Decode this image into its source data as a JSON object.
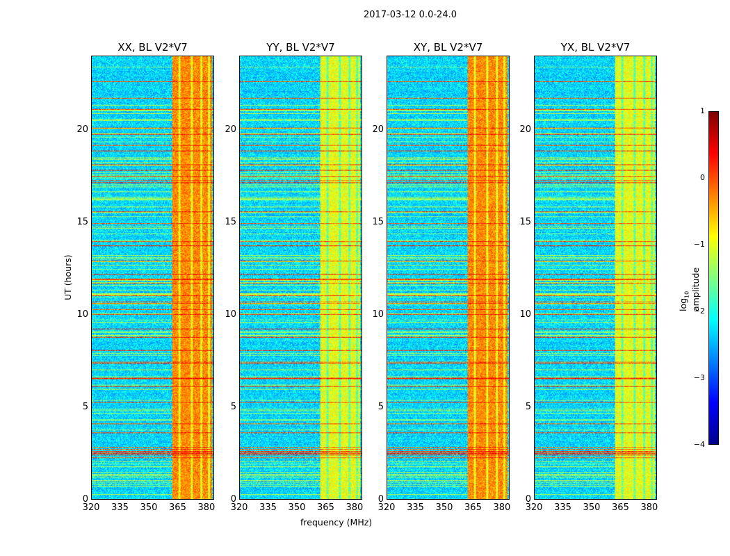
{
  "figure": {
    "suptitle": "2017-03-12 0.0-24.0"
  },
  "chart_data": {
    "type": "heatmap",
    "colormap": "jet",
    "panels": [
      {
        "title": "XX, BL V2*V7",
        "band_level": "high"
      },
      {
        "title": "YY, BL V2*V7",
        "band_level": "medium"
      },
      {
        "title": "XY, BL V2*V7",
        "band_level": "high"
      },
      {
        "title": "YX, BL V2*V7",
        "band_level": "medium"
      }
    ],
    "xlabel": "frequency (MHz)",
    "ylabel": "UT (hours)",
    "xlim": [
      320,
      384
    ],
    "ylim": [
      0,
      24
    ],
    "xticks": [
      "320",
      "335",
      "350",
      "365",
      "380"
    ],
    "yticks": [
      "0",
      "5",
      "10",
      "15",
      "20"
    ],
    "rfi_band_mhz": [
      362,
      383
    ],
    "colorbar": {
      "label": "log10 amplitude",
      "label_base": "log",
      "label_sub": "10",
      "label_rest": " amplitude",
      "clim": [
        -4,
        1
      ],
      "ticks": [
        "1",
        "0",
        "−1",
        "−2",
        "−3",
        "−4"
      ]
    }
  }
}
